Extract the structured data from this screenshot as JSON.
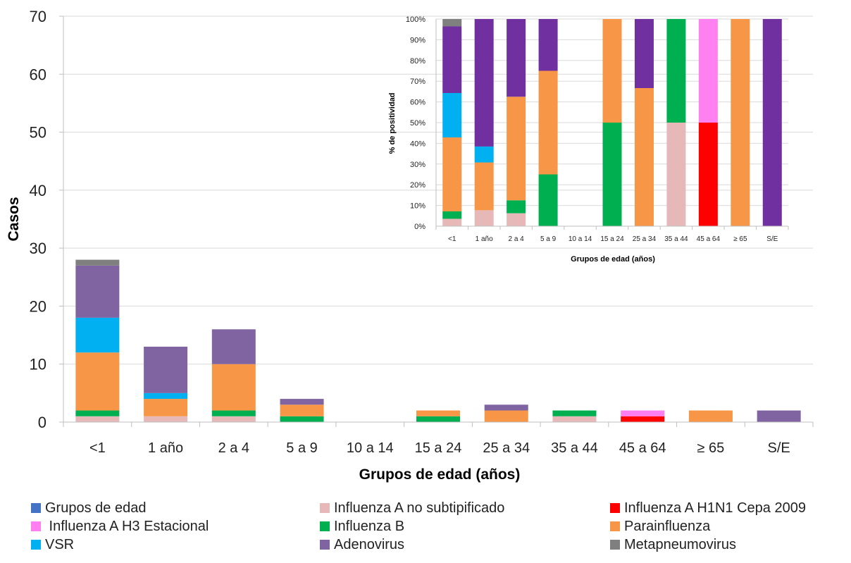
{
  "chart_data": [
    {
      "type": "bar",
      "stacked": true,
      "title": "",
      "xlabel": "Grupos de edad (años)",
      "ylabel": "Casos",
      "ylim": [
        0,
        70
      ],
      "yticks": [
        0,
        10,
        20,
        30,
        40,
        50,
        60,
        70
      ],
      "grid": true,
      "legend": "bottom",
      "categories": [
        "<1",
        "1 año",
        "2 a 4",
        "5 a 9",
        "10 a 14",
        "15 a 24",
        "25 a 34",
        "35 a 44",
        "45 a 64",
        "≥ 65",
        "S/E"
      ],
      "series": [
        {
          "name": "Grupos de edad",
          "color": "#4472C4",
          "values": [
            0,
            0,
            0,
            0,
            0,
            0,
            0,
            0,
            0,
            0,
            0
          ]
        },
        {
          "name": "Influenza A no subtipificado",
          "color": "#E6B9B8",
          "values": [
            1,
            1,
            1,
            0,
            0,
            0,
            0,
            1,
            0,
            0,
            0
          ]
        },
        {
          "name": "Influenza A H1N1 Cepa 2009",
          "color": "#FF0000",
          "values": [
            0,
            0,
            0,
            0,
            0,
            0,
            0,
            0,
            1,
            0,
            0
          ]
        },
        {
          "name": " Influenza A H3 Estacional",
          "color": "#FF7FF0",
          "values": [
            0,
            0,
            0,
            0,
            0,
            0,
            0,
            0,
            1,
            0,
            0
          ]
        },
        {
          "name": "Influenza B",
          "color": "#00B050",
          "values": [
            1,
            0,
            1,
            1,
            0,
            1,
            0,
            1,
            0,
            0,
            0
          ]
        },
        {
          "name": "Parainfluenza",
          "color": "#F79646",
          "values": [
            10,
            3,
            8,
            2,
            0,
            1,
            2,
            0,
            0,
            2,
            0
          ]
        },
        {
          "name": "VSR",
          "color": "#00B0F0",
          "values": [
            6,
            1,
            0,
            0,
            0,
            0,
            0,
            0,
            0,
            0,
            0
          ]
        },
        {
          "name": "Adenovirus",
          "color": "#8064A2",
          "values": [
            9,
            8,
            6,
            1,
            0,
            0,
            1,
            0,
            0,
            0,
            2
          ]
        },
        {
          "name": "Metapneumovirus",
          "color": "#7F7F7F",
          "values": [
            1,
            0,
            0,
            0,
            0,
            0,
            0,
            0,
            0,
            0,
            0
          ]
        }
      ]
    },
    {
      "type": "bar",
      "stacked": true,
      "percent": true,
      "title": "",
      "xlabel": "Grupos de edad (años)",
      "ylabel": "% de positividad",
      "ylim": [
        0,
        100
      ],
      "yticks": [
        "0%",
        "10%",
        "20%",
        "30%",
        "40%",
        "50%",
        "60%",
        "70%",
        "80%",
        "90%",
        "100%"
      ],
      "grid": true,
      "categories": [
        "<1",
        "1 año",
        "2 a 4",
        "5 a 9",
        "10 a 14",
        "15 a 24",
        "25 a 34",
        "35 a 44",
        "45 a 64",
        "≥ 65",
        "S/E"
      ],
      "series_colors": [
        "#4472C4",
        "#E6B9B8",
        "#FF0000",
        "#FF80F0",
        "#00B050",
        "#F79646",
        "#00B0F0",
        "#7030A0",
        "#7F7F7F"
      ],
      "note": "Same series as the main chart, shown as percentage of cases per age group"
    }
  ]
}
